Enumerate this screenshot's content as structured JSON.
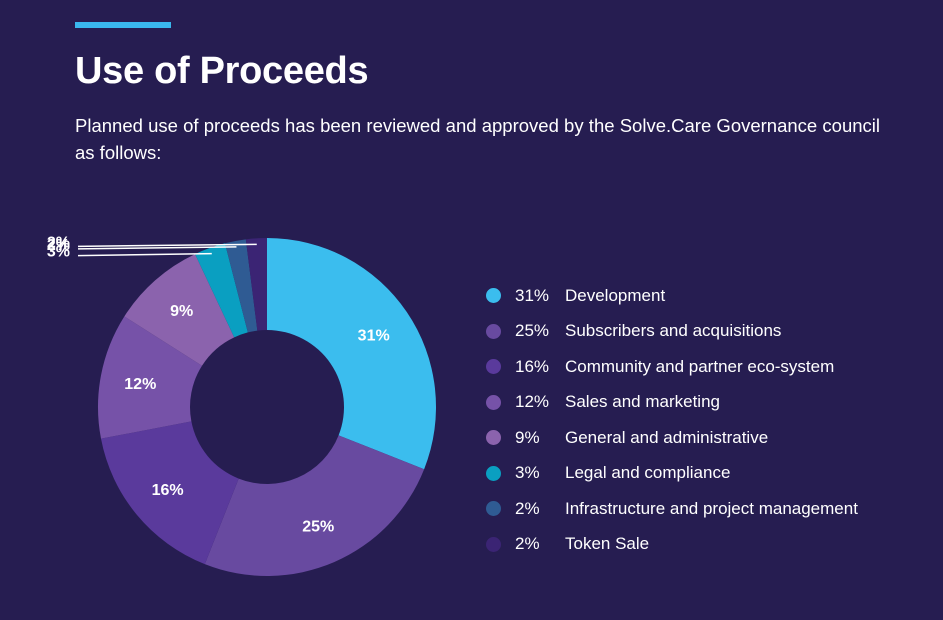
{
  "header": {
    "title": "Use of Proceeds",
    "subtitle": "Planned use of proceeds has been reviewed and approved by the Solve.Care Governance council as follows:"
  },
  "colors": {
    "background": "#261d51",
    "accent": "#3ab8ee"
  },
  "chart_data": {
    "type": "pie",
    "style": "donut",
    "title": "Use of Proceeds",
    "legend_position": "right",
    "slices": [
      {
        "label": "Development",
        "value": 31,
        "display": "31%",
        "color": "#3bbdee"
      },
      {
        "label": "Subscribers and acquisitions",
        "value": 25,
        "display": "25%",
        "color": "#684aa0"
      },
      {
        "label": "Community and partner eco-system",
        "value": 16,
        "display": "16%",
        "color": "#5a3a9c"
      },
      {
        "label": "Sales and marketing",
        "value": 12,
        "display": "12%",
        "color": "#7652a8"
      },
      {
        "label": "General and administrative",
        "value": 9,
        "display": "9%",
        "color": "#8b63ad"
      },
      {
        "label": "Legal and compliance",
        "value": 3,
        "display": "3%",
        "color": "#0a9fc1"
      },
      {
        "label": "Infrastructure and project management",
        "value": 2,
        "display": "2%",
        "color": "#2f5b93"
      },
      {
        "label": "Token Sale",
        "value": 2,
        "display": "2%",
        "color": "#3b2474"
      }
    ]
  }
}
